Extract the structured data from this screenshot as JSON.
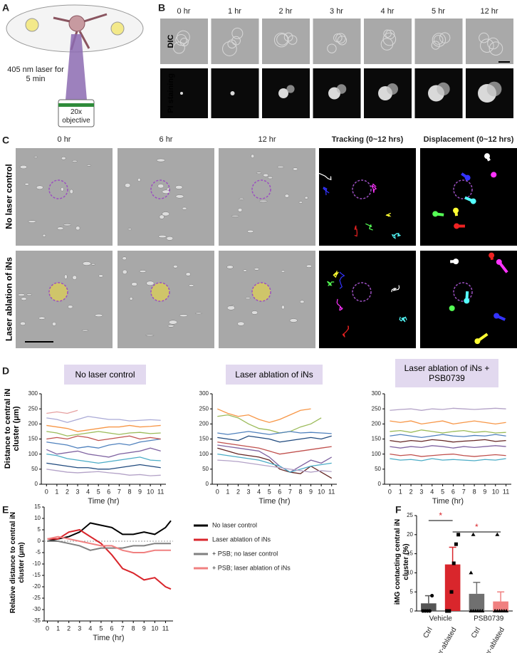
{
  "panels": {
    "letters": [
      "A",
      "B",
      "C",
      "D",
      "E",
      "F"
    ],
    "a": {
      "laser": "405 nm laser for 5 min",
      "objective": "20x objective"
    },
    "b": {
      "times": [
        "0 hr",
        "1 hr",
        "2 hr",
        "3 hr",
        "4 hr",
        "5 hr",
        "12 hr"
      ],
      "rows": [
        "DIC",
        "PI staining"
      ]
    },
    "c": {
      "columns": [
        "0 hr",
        "6 hr",
        "12 hr",
        "Tracking (0~12 hrs)",
        "Displacement (0~12 hrs)"
      ],
      "rows": [
        "No laser control",
        "Laser ablation of iNs"
      ]
    },
    "d": {
      "ylabel": "Distance to central iN cluster (μm)"
    }
  },
  "chart_data": [
    {
      "type": "line",
      "title": "No laser control",
      "xlabel": "Time (hr)",
      "x": [
        0,
        1,
        2,
        3,
        4,
        5,
        6,
        7,
        8,
        9,
        10,
        11
      ],
      "xlim": [
        -0.5,
        11.5
      ],
      "xticks": [
        0,
        1,
        2,
        3,
        4,
        5,
        6,
        7,
        8,
        9,
        10,
        11
      ],
      "ylim": [
        0,
        300
      ],
      "yticks": [
        0,
        50,
        100,
        150,
        200,
        250,
        300
      ],
      "series": [
        {
          "color": "#e6a0a0",
          "values": [
            235,
            240,
            235,
            245,
            null,
            null,
            null,
            null,
            null,
            null,
            null,
            null
          ]
        },
        {
          "color": "#a9a9d6",
          "values": [
            220,
            215,
            205,
            215,
            225,
            220,
            215,
            215,
            210,
            212,
            214,
            212
          ]
        },
        {
          "color": "#f79646",
          "values": [
            195,
            190,
            185,
            175,
            180,
            185,
            190,
            190,
            195,
            190,
            192,
            195
          ]
        },
        {
          "color": "#9bbb59",
          "values": [
            175,
            170,
            160,
            165,
            170,
            175,
            170,
            165,
            170,
            172,
            168,
            170
          ]
        },
        {
          "color": "#4f81bd",
          "values": [
            140,
            135,
            130,
            120,
            125,
            120,
            130,
            135,
            130,
            140,
            145,
            150
          ]
        },
        {
          "color": "#8064a2",
          "values": [
            115,
            100,
            105,
            110,
            100,
            95,
            90,
            100,
            105,
            110,
            120,
            110
          ]
        },
        {
          "color": "#4bacc6",
          "values": [
            100,
            95,
            85,
            80,
            75,
            70,
            75,
            80,
            85,
            90,
            80,
            78
          ]
        },
        {
          "color": "#1f497d",
          "values": [
            70,
            65,
            60,
            55,
            55,
            50,
            50,
            55,
            60,
            65,
            60,
            55
          ]
        },
        {
          "color": "#c0504d",
          "values": [
            150,
            155,
            150,
            160,
            155,
            145,
            150,
            155,
            160,
            150,
            155,
            150
          ]
        },
        {
          "color": "#b3a2c7",
          "values": [
            50,
            45,
            40,
            38,
            40,
            42,
            38,
            35,
            30,
            32,
            28,
            30
          ]
        }
      ]
    },
    {
      "type": "line",
      "title": "Laser ablation of iNs",
      "xlabel": "Time (hr)",
      "x": [
        0,
        1,
        2,
        3,
        4,
        5,
        6,
        7,
        8,
        9,
        10,
        11
      ],
      "xlim": [
        -0.5,
        11.5
      ],
      "xticks": [
        0,
        1,
        2,
        3,
        4,
        5,
        6,
        7,
        8,
        9,
        10,
        11
      ],
      "ylim": [
        0,
        300
      ],
      "yticks": [
        0,
        50,
        100,
        150,
        200,
        250,
        300
      ],
      "series": [
        {
          "color": "#f79646",
          "values": [
            250,
            235,
            225,
            230,
            215,
            205,
            215,
            230,
            245,
            250,
            null,
            null
          ]
        },
        {
          "color": "#9bbb59",
          "values": [
            225,
            230,
            220,
            200,
            185,
            180,
            170,
            175,
            190,
            200,
            220,
            null
          ]
        },
        {
          "color": "#4f81bd",
          "values": [
            170,
            165,
            170,
            175,
            170,
            165,
            170,
            175,
            170,
            172,
            170,
            168
          ]
        },
        {
          "color": "#1f497d",
          "values": [
            155,
            150,
            145,
            160,
            155,
            150,
            140,
            145,
            150,
            155,
            150,
            160
          ]
        },
        {
          "color": "#c0504d",
          "values": [
            140,
            135,
            130,
            125,
            120,
            110,
            100,
            105,
            110,
            115,
            120,
            125
          ]
        },
        {
          "color": "#8064a2",
          "values": [
            130,
            125,
            120,
            115,
            110,
            90,
            60,
            40,
            60,
            80,
            70,
            90
          ]
        },
        {
          "color": "#632523",
          "values": [
            120,
            110,
            100,
            95,
            90,
            80,
            50,
            40,
            35,
            60,
            40,
            20
          ]
        },
        {
          "color": "#4bacc6",
          "values": [
            100,
            95,
            90,
            85,
            80,
            70,
            60,
            40,
            50,
            60,
            65,
            70
          ]
        },
        {
          "color": "#b3a2c7",
          "values": [
            80,
            78,
            75,
            70,
            65,
            60,
            55,
            50,
            45,
            40,
            45,
            42
          ]
        }
      ]
    },
    {
      "type": "line",
      "title": "Laser ablation of iNs + PSB0739",
      "xlabel": "Time (hr)",
      "x": [
        0,
        1,
        2,
        3,
        4,
        5,
        6,
        7,
        8,
        9,
        10,
        11
      ],
      "xlim": [
        -0.5,
        11.5
      ],
      "xticks": [
        0,
        1,
        2,
        3,
        4,
        5,
        6,
        7,
        8,
        9,
        10,
        11
      ],
      "ylim": [
        0,
        300
      ],
      "yticks": [
        0,
        50,
        100,
        150,
        200,
        250,
        300
      ],
      "series": [
        {
          "color": "#b3a2c7",
          "values": [
            245,
            248,
            250,
            245,
            250,
            248,
            252,
            250,
            248,
            250,
            252,
            250
          ]
        },
        {
          "color": "#f79646",
          "values": [
            210,
            205,
            210,
            200,
            205,
            210,
            200,
            205,
            210,
            205,
            200,
            205
          ]
        },
        {
          "color": "#9bbb59",
          "values": [
            175,
            178,
            172,
            180,
            175,
            170,
            175,
            178,
            172,
            175,
            170,
            172
          ]
        },
        {
          "color": "#4f81bd",
          "values": [
            160,
            165,
            160,
            155,
            160,
            165,
            160,
            158,
            162,
            160,
            165,
            160
          ]
        },
        {
          "color": "#632523",
          "values": [
            145,
            140,
            145,
            142,
            148,
            145,
            140,
            143,
            145,
            148,
            142,
            145
          ]
        },
        {
          "color": "#8064a2",
          "values": [
            125,
            120,
            125,
            122,
            128,
            125,
            120,
            125,
            122,
            125,
            128,
            125
          ]
        },
        {
          "color": "#c0504d",
          "values": [
            100,
            95,
            98,
            92,
            95,
            98,
            100,
            95,
            92,
            95,
            98,
            95
          ]
        },
        {
          "color": "#4bacc6",
          "values": [
            85,
            80,
            82,
            78,
            85,
            80,
            82,
            80,
            78,
            82,
            80,
            85
          ]
        }
      ]
    },
    {
      "type": "line",
      "ylabel": "Relative distance to central iN cluster (μm)",
      "xlabel": "Time (hr)",
      "x": [
        0,
        1,
        2,
        3,
        4,
        5,
        6,
        7,
        8,
        9,
        10,
        11,
        11.5
      ],
      "xlim": [
        -0.3,
        11.7
      ],
      "xticks": [
        0,
        1,
        2,
        3,
        4,
        5,
        6,
        7,
        8,
        9,
        10,
        11
      ],
      "ylim": [
        -35,
        15
      ],
      "yticks": [
        15,
        10,
        5,
        0,
        -5,
        -10,
        -15,
        -20,
        -25,
        -30,
        -35
      ],
      "series": [
        {
          "name": "No laser control",
          "color": "#000000",
          "values": [
            0,
            1,
            2,
            4,
            8,
            7,
            6,
            3,
            3,
            4,
            3,
            6,
            9
          ]
        },
        {
          "name": "Laser ablation of iNs",
          "color": "#d9262c",
          "values": [
            1,
            1,
            4,
            5,
            2,
            -1,
            -6,
            -12,
            -14,
            -17,
            -16,
            -20,
            -21
          ]
        },
        {
          "name": "+ PSB; no laser control",
          "color": "#808080",
          "values": [
            0,
            0,
            -1,
            -2,
            -4,
            -3,
            -3,
            -3,
            -2,
            -2,
            -1,
            -1,
            -1
          ]
        },
        {
          "name": "+ PSB; laser ablation of iNs",
          "color": "#f08080",
          "values": [
            1,
            2,
            1,
            0,
            -1,
            -2,
            -2,
            -4,
            -5,
            -5,
            -4,
            -4,
            -4
          ]
        }
      ]
    },
    {
      "type": "bar",
      "ylabel": "iMG contacting central iN cluster (%)",
      "categories": [
        "Ctrl",
        "Laser-ablated",
        "Ctrl",
        "Laser-ablated"
      ],
      "groups": [
        "Vehicle",
        "PSB0739"
      ],
      "values": [
        2,
        12.2,
        4.5,
        2.5
      ],
      "errors": [
        2,
        4.5,
        3,
        2.5
      ],
      "colors": [
        "#555555",
        "#d9262c",
        "#707070",
        "#f08080"
      ],
      "markers": [
        "circle",
        "square",
        "triangle",
        "triangle"
      ],
      "points": [
        [
          0,
          0,
          0,
          0,
          4
        ],
        [
          0,
          0,
          5,
          12.5,
          17.5,
          20
        ],
        [
          0,
          0,
          0,
          0,
          0,
          0,
          10,
          20
        ],
        [
          0,
          0,
          0,
          0,
          0,
          0,
          0,
          20
        ]
      ],
      "annotations": [
        "*",
        "*"
      ],
      "ylim": [
        0,
        25
      ],
      "yticks": [
        0,
        5,
        10,
        15,
        20,
        25
      ]
    }
  ]
}
